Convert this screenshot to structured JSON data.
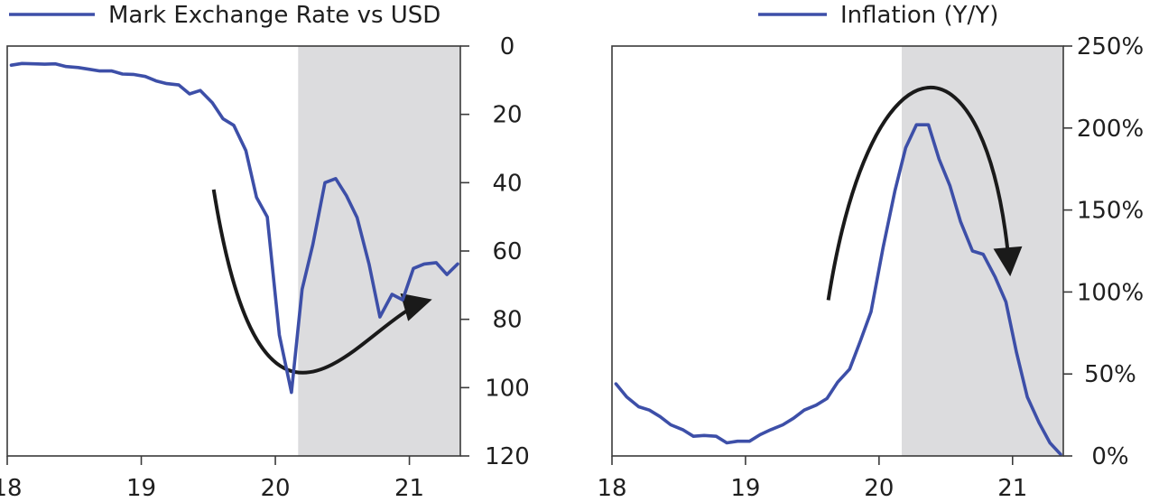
{
  "chart_data": [
    {
      "type": "line",
      "series": [
        {
          "name": "Mark Exchange Rate vs USD",
          "color": "#3d4fa8",
          "points": [
            [
              18.03,
              5.6
            ],
            [
              18.11,
              5.1
            ],
            [
              18.2,
              5.2
            ],
            [
              18.28,
              5.3
            ],
            [
              18.36,
              5.2
            ],
            [
              18.44,
              6.0
            ],
            [
              18.53,
              6.3
            ],
            [
              18.61,
              6.8
            ],
            [
              18.69,
              7.3
            ],
            [
              18.78,
              7.3
            ],
            [
              18.86,
              8.2
            ],
            [
              18.94,
              8.3
            ],
            [
              19.03,
              8.9
            ],
            [
              19.11,
              10.2
            ],
            [
              19.19,
              11.0
            ],
            [
              19.28,
              11.4
            ],
            [
              19.36,
              14.0
            ],
            [
              19.44,
              13.0
            ],
            [
              19.53,
              16.6
            ],
            [
              19.61,
              21.3
            ],
            [
              19.69,
              23.2
            ],
            [
              19.78,
              30.6
            ],
            [
              19.86,
              44.3
            ],
            [
              19.94,
              50.0
            ],
            [
              20.03,
              84.6
            ],
            [
              20.12,
              101.4
            ],
            [
              20.2,
              71.2
            ],
            [
              20.28,
              58.1
            ],
            [
              20.37,
              40.0
            ],
            [
              20.45,
              38.8
            ],
            [
              20.53,
              43.8
            ],
            [
              20.61,
              50.2
            ],
            [
              20.7,
              64.0
            ],
            [
              20.78,
              79.3
            ],
            [
              20.87,
              72.7
            ],
            [
              20.95,
              74.3
            ],
            [
              21.03,
              65.1
            ],
            [
              21.11,
              63.8
            ],
            [
              21.2,
              63.4
            ],
            [
              21.28,
              66.9
            ],
            [
              21.36,
              63.8
            ]
          ]
        }
      ],
      "xticks": [
        "18",
        "19",
        "20",
        "21"
      ],
      "xlim": [
        18,
        21.38
      ],
      "yticks": [
        "0",
        "20",
        "40",
        "60",
        "80",
        "100",
        "120"
      ],
      "ylim": [
        0,
        120
      ],
      "y_inverted": true,
      "y_axis_side": "right",
      "shaded_span": [
        20.17,
        21.38
      ],
      "shade_color": "#dcdcde",
      "trend_arrow_color": "#1a1a1a",
      "legend_position": "top"
    },
    {
      "type": "line",
      "series": [
        {
          "name": "Inflation (Y/Y)",
          "color": "#3d4fa8",
          "points": [
            [
              18.03,
              44
            ],
            [
              18.11,
              36
            ],
            [
              18.2,
              30
            ],
            [
              18.28,
              28
            ],
            [
              18.36,
              24
            ],
            [
              18.44,
              19
            ],
            [
              18.53,
              16
            ],
            [
              18.61,
              12
            ],
            [
              18.69,
              12.5
            ],
            [
              18.78,
              12
            ],
            [
              18.86,
              8
            ],
            [
              18.94,
              9
            ],
            [
              19.03,
              9
            ],
            [
              19.11,
              13
            ],
            [
              19.19,
              16
            ],
            [
              19.28,
              19
            ],
            [
              19.36,
              23
            ],
            [
              19.44,
              28
            ],
            [
              19.53,
              31
            ],
            [
              19.61,
              35
            ],
            [
              19.69,
              45
            ],
            [
              19.78,
              53
            ],
            [
              19.86,
              70
            ],
            [
              19.94,
              88
            ],
            [
              20.03,
              127
            ],
            [
              20.12,
              162
            ],
            [
              20.2,
              188
            ],
            [
              20.28,
              202
            ],
            [
              20.37,
              202
            ],
            [
              20.45,
              181
            ],
            [
              20.53,
              165
            ],
            [
              20.61,
              143
            ],
            [
              20.7,
              125
            ],
            [
              20.78,
              123
            ],
            [
              20.87,
              109
            ],
            [
              20.95,
              94
            ],
            [
              21.03,
              63
            ],
            [
              21.11,
              36
            ],
            [
              21.2,
              20
            ],
            [
              21.28,
              8
            ],
            [
              21.36,
              1
            ]
          ]
        }
      ],
      "xticks": [
        "18",
        "19",
        "20",
        "21"
      ],
      "xlim": [
        18,
        21.38
      ],
      "yticks": [
        "0%",
        "50%",
        "100%",
        "150%",
        "200%",
        "250%"
      ],
      "ylim": [
        0,
        250
      ],
      "y_axis_side": "right",
      "shaded_span": [
        20.17,
        21.38
      ],
      "shade_color": "#dcdcde",
      "trend_arrow_color": "#1a1a1a",
      "legend_position": "top"
    }
  ]
}
